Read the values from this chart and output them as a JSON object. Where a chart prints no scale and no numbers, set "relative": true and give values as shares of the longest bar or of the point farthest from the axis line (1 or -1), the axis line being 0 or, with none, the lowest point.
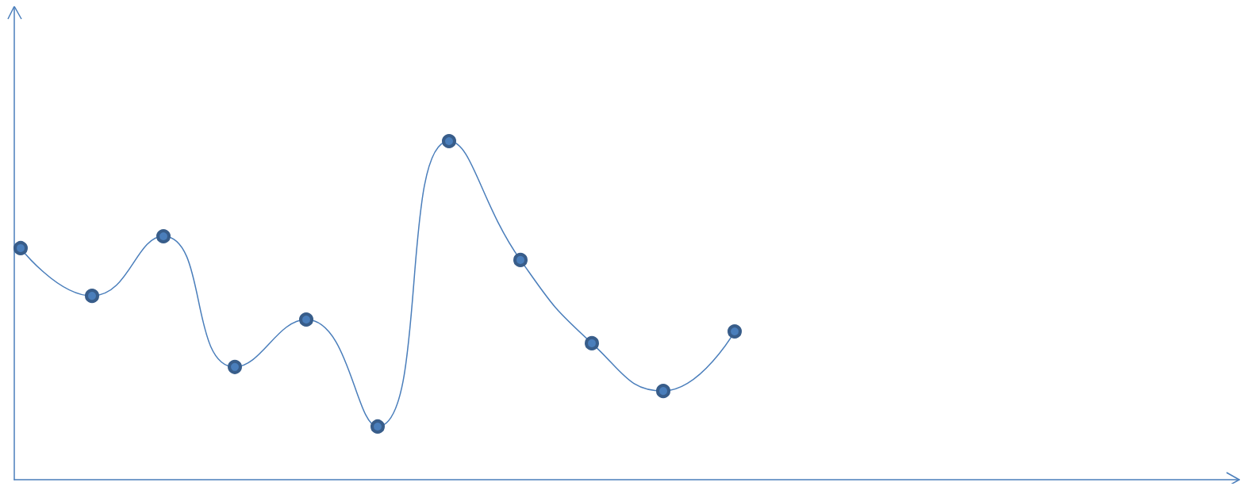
{
  "chart_data": {
    "type": "line",
    "relative": true,
    "categories": [
      null,
      null,
      null,
      null,
      null,
      null,
      null,
      null,
      null,
      null,
      null
    ],
    "series": [
      {
        "color": "#4a7ebb",
        "values": [
          0.684,
          0.543,
          0.719,
          0.333,
          0.473,
          0.157,
          1,
          0.649,
          0.403,
          0.262,
          0.438
        ]
      }
    ],
    "marker": "circle",
    "line_style": "solid"
  }
}
